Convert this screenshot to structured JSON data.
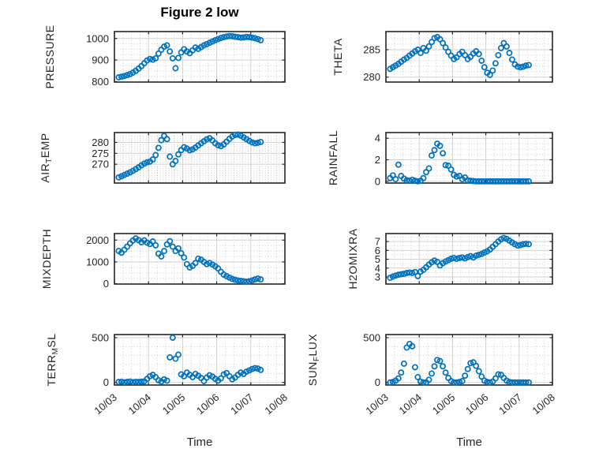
{
  "title": "Figure 2 low",
  "xlabel": "Time",
  "x_tick_labels": [
    "10/03",
    "10/04",
    "10/05",
    "10/06",
    "10/07",
    "10/08"
  ],
  "marker_color": "#0072BD",
  "axis_color": "#262626",
  "grid_major_color": "#d2d2d2",
  "chart_data": [
    {
      "id": "pressure",
      "type": "scatter",
      "label": "PRESSURE",
      "label_parts": [
        {
          "t": "PRESSURE"
        }
      ],
      "grid": [
        0,
        0
      ],
      "ylim": [
        798,
        1032
      ],
      "yticks": [
        800,
        900,
        1000
      ],
      "y_minor": 25,
      "x0_days": 0.125,
      "dx_days": 0.0833,
      "values": [
        820,
        823,
        826,
        830,
        835,
        842,
        850,
        860,
        872,
        885,
        898,
        905,
        902,
        908,
        930,
        948,
        962,
        968,
        940,
        908,
        862,
        910,
        935,
        950,
        940,
        932,
        945,
        958,
        952,
        960,
        968,
        974,
        980,
        986,
        992,
        997,
        1002,
        1006,
        1009,
        1011,
        1010,
        1008,
        1006,
        1004,
        1005,
        1007,
        1006,
        1004,
        1001,
        997,
        992
      ]
    },
    {
      "id": "theta",
      "type": "scatter",
      "label": "THETA",
      "label_parts": [
        {
          "t": "THETA"
        }
      ],
      "grid": [
        0,
        1
      ],
      "ylim": [
        279.1,
        288.3
      ],
      "yticks": [
        280,
        285
      ],
      "y_minor": 1,
      "x0_days": 0.125,
      "dx_days": 0.0833,
      "values": [
        281.5,
        281.8,
        282.1,
        282.4,
        282.8,
        283.2,
        283.5,
        283.9,
        284.3,
        284.7,
        285.0,
        284.4,
        285.3,
        284.8,
        285.6,
        286.4,
        287.1,
        287.3,
        286.9,
        286.2,
        285.4,
        284.6,
        283.9,
        283.3,
        283.6,
        284.2,
        284.6,
        284.0,
        283.3,
        283.7,
        284.3,
        284.7,
        284.2,
        283.0,
        281.8,
        280.8,
        280.4,
        281.2,
        282.5,
        284.0,
        285.3,
        286.2,
        285.6,
        284.4,
        283.2,
        282.3,
        281.9,
        281.8,
        281.9,
        282.1,
        282.2
      ]
    },
    {
      "id": "air_temp",
      "type": "scatter",
      "label": "AIR_TEMP",
      "label_parts": [
        {
          "t": "AIR"
        },
        {
          "t": "T",
          "sub": true
        },
        {
          "t": "EMP"
        }
      ],
      "grid": [
        1,
        0
      ],
      "ylim": [
        261.4,
        284.5
      ],
      "yticks": [
        270,
        275,
        280
      ],
      "y_minor": 1,
      "x0_days": 0.125,
      "dx_days": 0.0833,
      "values": [
        264.0,
        264.5,
        265.1,
        265.7,
        266.3,
        267.0,
        267.8,
        268.6,
        269.5,
        270.3,
        270.9,
        271.2,
        272.2,
        274.2,
        277.5,
        281.0,
        283.0,
        281.5,
        273.5,
        270.0,
        271.5,
        274.5,
        276.5,
        277.8,
        277.2,
        276.4,
        276.8,
        277.6,
        278.6,
        279.6,
        280.5,
        281.4,
        281.9,
        280.9,
        279.6,
        278.7,
        278.3,
        279.1,
        280.3,
        281.6,
        282.7,
        283.4,
        283.6,
        283.1,
        282.3,
        281.5,
        280.7,
        280.0,
        279.6,
        279.8,
        280.2
      ]
    },
    {
      "id": "rainfall",
      "type": "scatter",
      "label": "RAINFALL",
      "label_parts": [
        {
          "t": "RAINFALL"
        }
      ],
      "grid": [
        1,
        1
      ],
      "ylim": [
        -0.16,
        4.53
      ],
      "yticks": [
        0,
        2,
        4
      ],
      "y_minor": 0.5,
      "x0_days": 0.125,
      "dx_days": 0.0833,
      "values": [
        0.3,
        0.55,
        0.2,
        1.55,
        0.5,
        0.25,
        0.1,
        0.05,
        0.15,
        0.05,
        0,
        0.05,
        0.3,
        0.85,
        1.2,
        2.4,
        2.9,
        3.5,
        3.3,
        2.6,
        1.5,
        1.45,
        1.1,
        0.6,
        0.45,
        0.5,
        0.2,
        0.35,
        0.1,
        0.05,
        0.02,
        0,
        0,
        0,
        0,
        0,
        0,
        0,
        0,
        0,
        0,
        0,
        0,
        0,
        0,
        0,
        0,
        0,
        0,
        0,
        0
      ]
    },
    {
      "id": "mixdepth",
      "type": "scatter",
      "label": "MIXDEPTH",
      "label_parts": [
        {
          "t": "MIXDEPTH"
        }
      ],
      "grid": [
        2,
        0
      ],
      "ylim": [
        -15,
        2300
      ],
      "yticks": [
        0,
        1000,
        2000
      ],
      "y_minor": 250,
      "x0_days": 0.125,
      "dx_days": 0.0833,
      "values": [
        1500,
        1420,
        1560,
        1700,
        1850,
        1980,
        2080,
        2000,
        1900,
        1990,
        1880,
        1820,
        1940,
        1760,
        1380,
        1250,
        1500,
        1800,
        1950,
        1700,
        1500,
        1620,
        1400,
        1200,
        900,
        750,
        820,
        950,
        1150,
        1100,
        1000,
        900,
        950,
        880,
        800,
        700,
        550,
        420,
        350,
        280,
        220,
        180,
        150,
        130,
        110,
        90,
        110,
        150,
        200,
        240,
        200
      ]
    },
    {
      "id": "h2omixra",
      "type": "scatter",
      "label": "H2OMIXRA",
      "label_parts": [
        {
          "t": "H2OMIXRA"
        }
      ],
      "grid": [
        2,
        1
      ],
      "ylim": [
        2.2,
        7.9
      ],
      "yticks": [
        3,
        4,
        5,
        6,
        7
      ],
      "y_minor": 0.5,
      "x0_days": 0.125,
      "dx_days": 0.0833,
      "values": [
        2.9,
        3.05,
        3.15,
        3.25,
        3.3,
        3.35,
        3.45,
        3.5,
        3.45,
        3.55,
        3.1,
        3.6,
        3.8,
        4.1,
        4.4,
        4.65,
        4.85,
        4.7,
        4.3,
        4.55,
        4.75,
        4.9,
        5.05,
        5.15,
        5.05,
        5.15,
        5.2,
        5.1,
        5.25,
        5.35,
        5.2,
        5.4,
        5.5,
        5.6,
        5.75,
        5.9,
        6.1,
        6.4,
        6.7,
        7.0,
        7.25,
        7.4,
        7.3,
        7.1,
        6.9,
        6.7,
        6.55,
        6.6,
        6.7,
        6.75,
        6.7
      ]
    },
    {
      "id": "terr_msl",
      "type": "scatter",
      "label": "TERR_MSL",
      "label_parts": [
        {
          "t": "TERR"
        },
        {
          "t": "M",
          "sub": true
        },
        {
          "t": "SL"
        }
      ],
      "grid": [
        3,
        0
      ],
      "ylim": [
        -29,
        535
      ],
      "yticks": [
        0,
        500
      ],
      "y_minor": 100,
      "x0_days": 0.125,
      "dx_days": 0.0833,
      "values": [
        5,
        8,
        3,
        6,
        10,
        4,
        7,
        5,
        9,
        12,
        40,
        70,
        85,
        60,
        25,
        10,
        35,
        20,
        280,
        500,
        265,
        310,
        90,
        70,
        110,
        85,
        60,
        95,
        75,
        50,
        15,
        55,
        80,
        65,
        40,
        20,
        45,
        90,
        105,
        70,
        35,
        55,
        85,
        110,
        95,
        120,
        135,
        150,
        160,
        155,
        140
      ]
    },
    {
      "id": "sun_flux",
      "type": "scatter",
      "label": "SUN_FLUX",
      "label_parts": [
        {
          "t": "SUN"
        },
        {
          "t": "F",
          "sub": true
        },
        {
          "t": "LUX"
        }
      ],
      "grid": [
        3,
        1
      ],
      "ylim": [
        -29,
        535
      ],
      "yticks": [
        0,
        500
      ],
      "y_minor": 100,
      "x0_days": 0.125,
      "dx_days": 0.0833,
      "values": [
        0,
        5,
        20,
        45,
        110,
        210,
        390,
        430,
        405,
        170,
        60,
        10,
        0,
        0,
        30,
        100,
        180,
        250,
        240,
        180,
        110,
        50,
        15,
        0,
        0,
        5,
        15,
        75,
        150,
        215,
        225,
        185,
        125,
        65,
        20,
        5,
        0,
        10,
        45,
        90,
        85,
        50,
        20,
        5,
        0,
        0,
        0,
        0,
        0,
        0,
        0
      ]
    }
  ]
}
